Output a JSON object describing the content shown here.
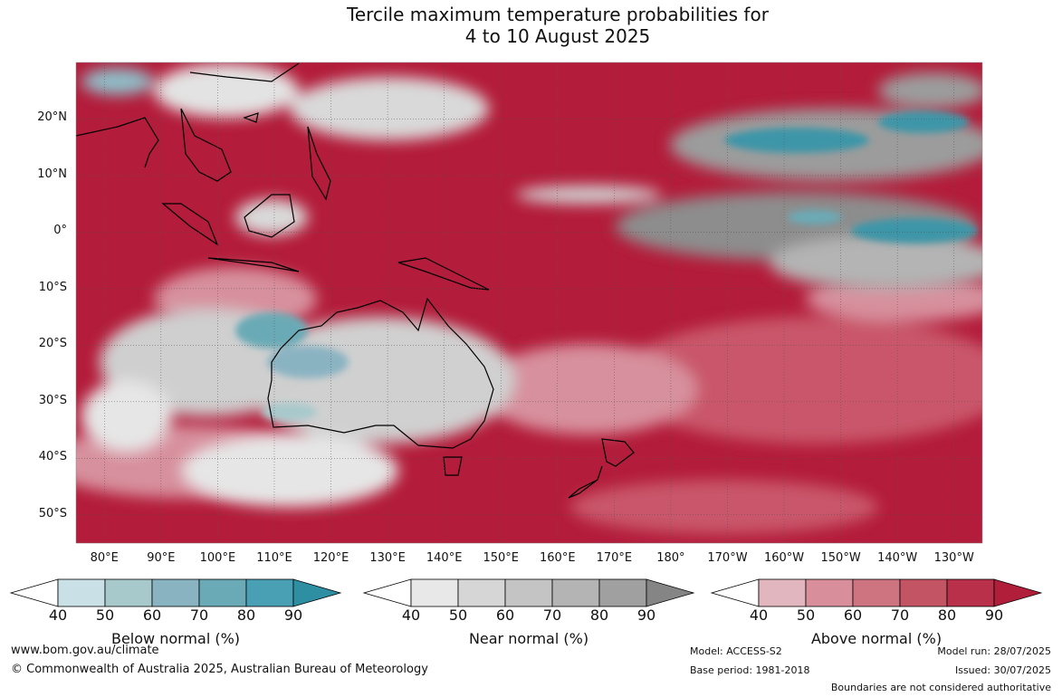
{
  "title_line1": "Tercile maximum temperature probabilities for",
  "title_line2": "4 to 10 August 2025",
  "lat_labels": [
    "20°N",
    "10°N",
    "0°",
    "10°S",
    "20°S",
    "30°S",
    "40°S",
    "50°S"
  ],
  "lon_labels": [
    "80°E",
    "90°E",
    "100°E",
    "110°E",
    "120°E",
    "130°E",
    "140°E",
    "150°E",
    "160°E",
    "170°E",
    "180°",
    "170°W",
    "160°W",
    "150°W",
    "140°W",
    "130°W"
  ],
  "legends": [
    {
      "title": "Below normal (%)",
      "ticks": [
        "40",
        "50",
        "60",
        "70",
        "80",
        "90"
      ],
      "colors": [
        "#ffffff",
        "#c9e0e6",
        "#a8c9cc",
        "#8ab3c2",
        "#6aaab6",
        "#49a0b4",
        "#2e8fa3"
      ]
    },
    {
      "title": "Near normal (%)",
      "ticks": [
        "40",
        "50",
        "60",
        "70",
        "80",
        "90"
      ],
      "colors": [
        "#ffffff",
        "#e8e8e8",
        "#d6d6d6",
        "#c4c4c4",
        "#b4b4b4",
        "#a0a0a0",
        "#858585"
      ]
    },
    {
      "title": "Above normal (%)",
      "ticks": [
        "40",
        "50",
        "60",
        "70",
        "80",
        "90"
      ],
      "colors": [
        "#ffffff",
        "#e2b6bf",
        "#d88f9b",
        "#cd7480",
        "#c25463",
        "#b8304a",
        "#b01e3a"
      ]
    }
  ],
  "footer": {
    "url": "www.bom.gov.au/climate",
    "copyright": "© Commonwealth of Australia 2025, Australian Bureau of Meteorology",
    "model": "Model: ACCESS-S2",
    "base_period": "Base period: 1981-2018",
    "model_run": "Model run: 28/07/2025",
    "issued": "Issued: 30/07/2025",
    "disclaimer": "Boundaries are not considered authoritative"
  },
  "map_colors": {
    "above": "#b31c3a",
    "near": "#a6a6a6",
    "below": "#4aa3b5"
  }
}
